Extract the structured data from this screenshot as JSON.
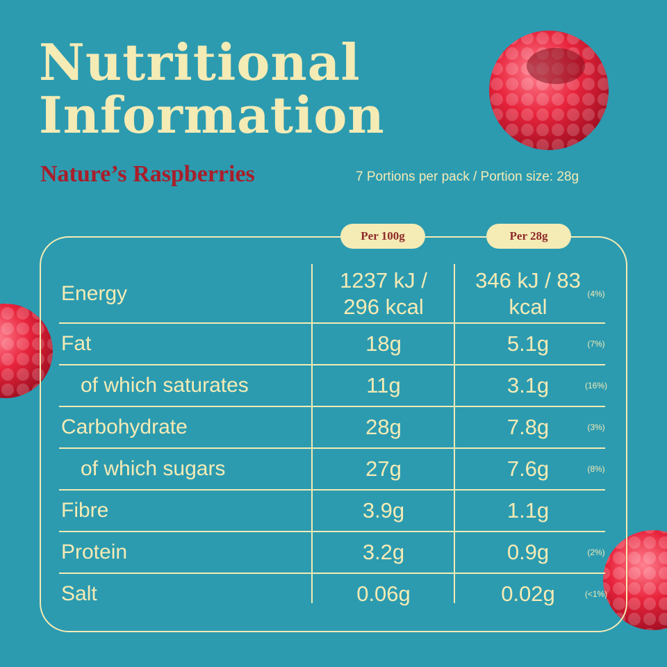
{
  "title_lines": [
    "Nutritional",
    "Information"
  ],
  "product": "Nature’s Raspberries",
  "portion_info": "7 Portions per pack / Portion size: 28g",
  "column_headers": [
    "Per 100g",
    "Per 28g"
  ],
  "rows": [
    {
      "label": "Energy",
      "per_100g": "1237 kJ / 296 kcal",
      "per_portion": "346 kJ / 83 kcal",
      "ri": "(4%)"
    },
    {
      "label": "Fat",
      "per_100g": "18g",
      "per_portion": "5.1g",
      "ri": "(7%)"
    },
    {
      "label": "of which saturates",
      "indent": true,
      "per_100g": "11g",
      "per_portion": "3.1g",
      "ri": "(16%)"
    },
    {
      "label": "Carbohydrate",
      "per_100g": "28g",
      "per_portion": "7.8g",
      "ri": "(3%)"
    },
    {
      "label": "of which sugars",
      "indent": true,
      "per_100g": "27g",
      "per_portion": "7.6g",
      "ri": "(8%)"
    },
    {
      "label": "Fibre",
      "per_100g": "3.9g",
      "per_portion": "1.1g"
    },
    {
      "label": "Protein",
      "per_100g": "3.2g",
      "per_portion": "0.9g",
      "ri": "(2%)"
    },
    {
      "label": "Salt",
      "per_100g": "0.06g",
      "per_portion": "0.02g",
      "ri": "(<1%)"
    }
  ]
}
